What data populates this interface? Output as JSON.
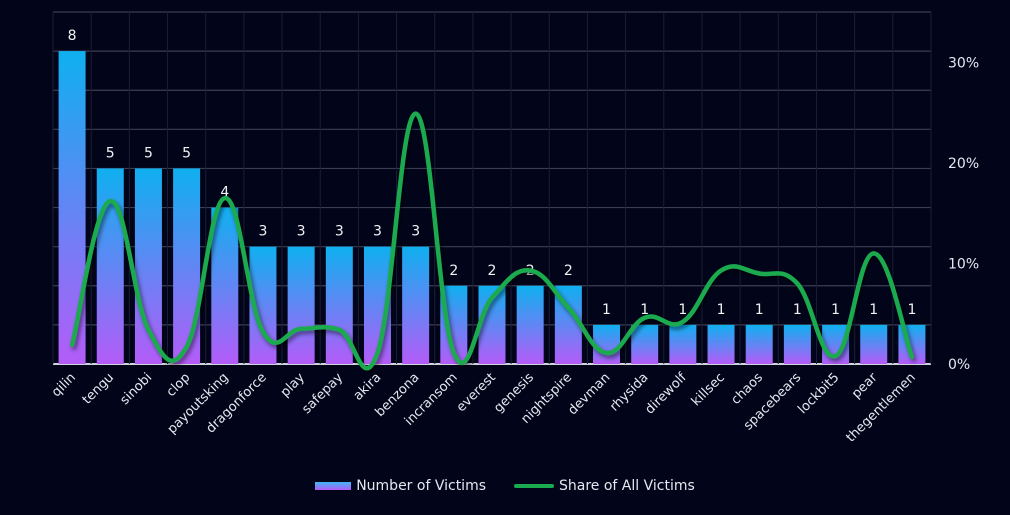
{
  "chart_data": {
    "type": "bar",
    "title": "",
    "xlabel": "",
    "ylabel": "",
    "categories": [
      "qilin",
      "tengu",
      "sinobi",
      "clop",
      "payoutsking",
      "dragonforce",
      "play",
      "safepay",
      "akira",
      "benzona",
      "incransom",
      "everest",
      "genesis",
      "nightspire",
      "devman",
      "rhysida",
      "direwolf",
      "killsec",
      "chaos",
      "spacebears",
      "lockbit5",
      "pear",
      "thegentlemen"
    ],
    "series": [
      {
        "name": "Number of Victims",
        "type": "bar",
        "axis": "left",
        "values": [
          8,
          5,
          5,
          5,
          4,
          3,
          3,
          3,
          3,
          3,
          2,
          2,
          2,
          2,
          1,
          1,
          1,
          1,
          1,
          1,
          1,
          1,
          1
        ],
        "color_top": "#0fb0f0",
        "color_bottom": "#b45cf8"
      },
      {
        "name": "Share of All Victims",
        "type": "line",
        "axis": "right",
        "smooth": true,
        "values": [
          1.9,
          16.2,
          3.4,
          1.7,
          16.5,
          3.2,
          3.5,
          3.4,
          1.1,
          24.9,
          1.1,
          6.6,
          9.3,
          5.6,
          1.1,
          4.6,
          4.2,
          9.3,
          9.0,
          8.0,
          0.8,
          11.0,
          0.7
        ],
        "unit": "%",
        "color": "#1aaa50"
      }
    ],
    "ylim": [
      0,
      9
    ],
    "y2lim": [
      0,
      35
    ],
    "y2_ticks": [
      0,
      10,
      20,
      30
    ],
    "y2_tick_labels": [
      "0%",
      "10%",
      "20%",
      "30%"
    ],
    "grid": true,
    "legend_position": "bottom-center"
  }
}
